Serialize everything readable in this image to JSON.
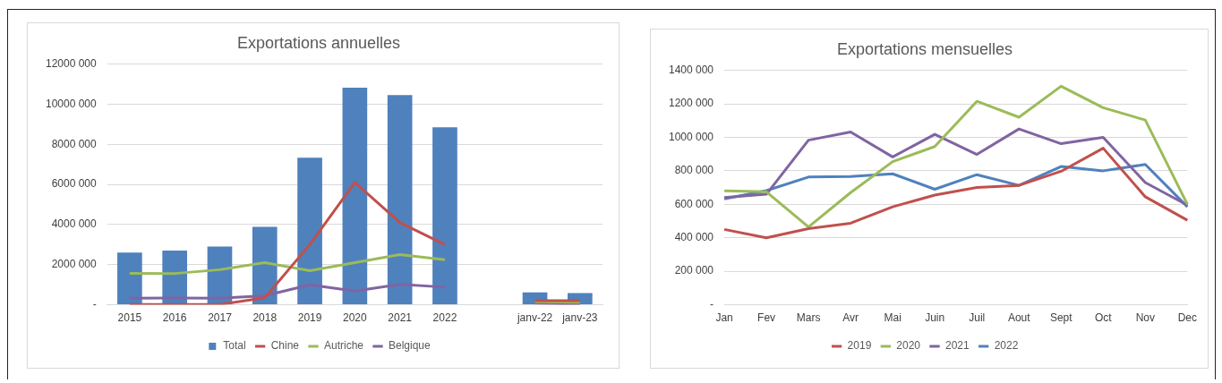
{
  "chart_data": [
    {
      "type": "bar",
      "title": "Exportations annuelles",
      "categories": [
        "2015",
        "2016",
        "2017",
        "2018",
        "2019",
        "2020",
        "2021",
        "2022",
        null,
        "janv-22",
        "janv-23"
      ],
      "series": [
        {
          "name": "Total",
          "type": "bar",
          "color": "#4f81bd",
          "values": [
            2600000,
            2700000,
            2900000,
            3880000,
            7330000,
            10820000,
            10450000,
            8850000,
            null,
            620000,
            580000
          ]
        },
        {
          "name": "Chine",
          "type": "line",
          "color": "#c0504d",
          "values": [
            20000,
            20000,
            20000,
            350000,
            3000000,
            6100000,
            4100000,
            3000000,
            null,
            200000,
            200000
          ]
        },
        {
          "name": "Autriche",
          "type": "line",
          "color": "#9bbb59",
          "values": [
            1570000,
            1560000,
            1750000,
            2100000,
            1700000,
            2100000,
            2500000,
            2250000,
            null,
            150000,
            130000
          ]
        },
        {
          "name": "Belgique",
          "type": "line",
          "color": "#8064a2",
          "values": [
            330000,
            340000,
            330000,
            450000,
            1000000,
            680000,
            1020000,
            880000,
            null,
            80000,
            30000
          ]
        }
      ],
      "ylim": [
        0,
        12000000
      ],
      "yticks": [
        {
          "value": 0,
          "label": "-"
        },
        {
          "value": 2000000,
          "label": "2000 000"
        },
        {
          "value": 4000000,
          "label": "4000 000"
        },
        {
          "value": 6000000,
          "label": "6000 000"
        },
        {
          "value": 8000000,
          "label": "8000 000"
        },
        {
          "value": 10000000,
          "label": "10000 000"
        },
        {
          "value": 12000000,
          "label": "12000 000"
        }
      ],
      "grid": "y",
      "legend": "bottom",
      "marker": "none"
    },
    {
      "type": "line",
      "title": "Exportations mensuelles",
      "categories": [
        "Jan",
        "Fev",
        "Mars",
        "Avr",
        "Mai",
        "Juin",
        "Juil",
        "Aout",
        "Sept",
        "Oct",
        "Nov",
        "Dec"
      ],
      "series": [
        {
          "name": "2019",
          "color": "#c0504d",
          "values": [
            450000,
            400000,
            455000,
            487000,
            585000,
            655000,
            700000,
            713000,
            797000,
            935000,
            645000,
            505000
          ]
        },
        {
          "name": "2020",
          "color": "#9bbb59",
          "values": [
            680000,
            675000,
            465000,
            670000,
            855000,
            945000,
            1215000,
            1120000,
            1305000,
            1177000,
            1103000,
            600000
          ]
        },
        {
          "name": "2021",
          "color": "#8064a2",
          "values": [
            640000,
            660000,
            983000,
            1032000,
            883000,
            1018000,
            898000,
            1050000,
            962000,
            1000000,
            730000,
            595000
          ]
        },
        {
          "name": "2022",
          "color": "#4f81bd",
          "values": [
            632000,
            682000,
            763000,
            766000,
            782000,
            690000,
            777000,
            713000,
            826000,
            800000,
            838000,
            585000
          ]
        }
      ],
      "ylim": [
        0,
        1400000
      ],
      "yticks": [
        {
          "value": 0,
          "label": "-"
        },
        {
          "value": 200000,
          "label": "200 000"
        },
        {
          "value": 400000,
          "label": "400 000"
        },
        {
          "value": 600000,
          "label": "600 000"
        },
        {
          "value": 800000,
          "label": "800 000"
        },
        {
          "value": 1000000,
          "label": "1000 000"
        },
        {
          "value": 1200000,
          "label": "1200 000"
        },
        {
          "value": 1400000,
          "label": "1400 000"
        }
      ],
      "grid": "y",
      "legend": "bottom",
      "marker": "none"
    }
  ]
}
